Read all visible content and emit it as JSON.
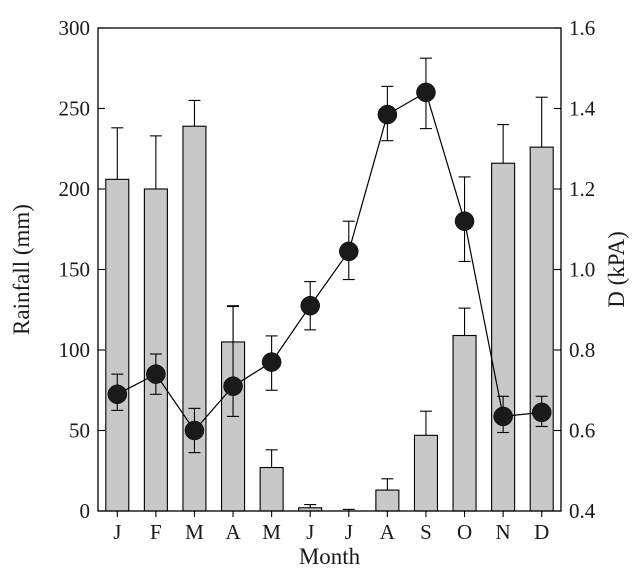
{
  "chart_data": {
    "type": "bar+line",
    "categories": [
      "J",
      "F",
      "M",
      "A",
      "M",
      "J",
      "J",
      "A",
      "S",
      "O",
      "N",
      "D"
    ],
    "xlabel": "Month",
    "ylabel_left": "Rainfall (mm)",
    "ylabel_right": "D (kPA)",
    "ylim_left": [
      0,
      300
    ],
    "ylim_right": [
      0.4,
      1.6
    ],
    "yticks_left": [
      "0",
      "50",
      "100",
      "150",
      "200",
      "250",
      "300"
    ],
    "yticks_right": [
      "0.4",
      "0.6",
      "0.8",
      "1.0",
      "1.2",
      "1.4",
      "1.6"
    ],
    "grid": false,
    "series": [
      {
        "name": "",
        "kind": "bar",
        "axis": "left",
        "values": [
          206,
          200,
          239,
          105,
          27,
          2,
          0,
          13,
          47,
          109,
          216,
          226
        ],
        "err_upper": [
          238,
          233,
          255,
          127,
          38,
          4,
          1,
          20,
          62,
          126,
          240,
          257
        ],
        "color": "#c8c8c8"
      },
      {
        "name": "",
        "kind": "line",
        "axis": "right",
        "values": [
          0.69,
          0.74,
          0.6,
          0.71,
          0.77,
          0.91,
          1.045,
          1.385,
          1.44,
          1.12,
          0.635,
          0.645
        ],
        "err_low": [
          0.65,
          0.69,
          0.545,
          0.635,
          0.7,
          0.85,
          0.975,
          1.32,
          1.35,
          1.02,
          0.595,
          0.61
        ],
        "err_high": [
          0.74,
          0.79,
          0.655,
          0.91,
          0.835,
          0.97,
          1.12,
          1.455,
          1.525,
          1.23,
          0.685,
          0.685
        ],
        "color": "#1a1a1a"
      }
    ]
  }
}
